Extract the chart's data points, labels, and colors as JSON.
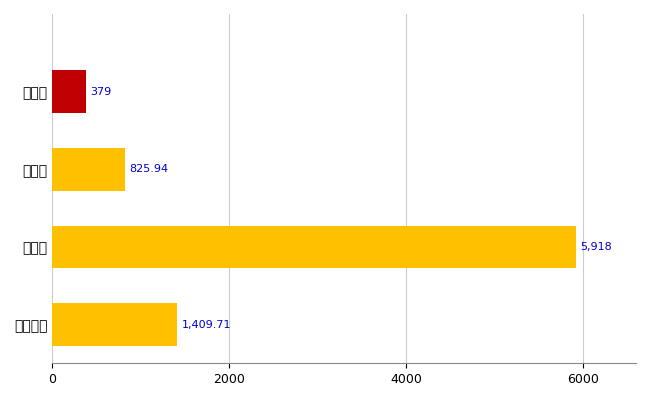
{
  "categories": [
    "全国平均",
    "県最大",
    "県平均",
    "山田町"
  ],
  "values": [
    1409.71,
    5918,
    825.94,
    379
  ],
  "bar_colors": [
    "#FFC000",
    "#FFC000",
    "#FFC000",
    "#C00000"
  ],
  "labels": [
    "1,409.71",
    "5,918",
    "825.94",
    "379"
  ],
  "xlim": [
    0,
    6600
  ],
  "xticks": [
    0,
    2000,
    4000,
    6000
  ],
  "background_color": "#FFFFFF",
  "grid_color": "#CCCCCC",
  "label_color": "#0000CC",
  "bar_height": 0.55
}
